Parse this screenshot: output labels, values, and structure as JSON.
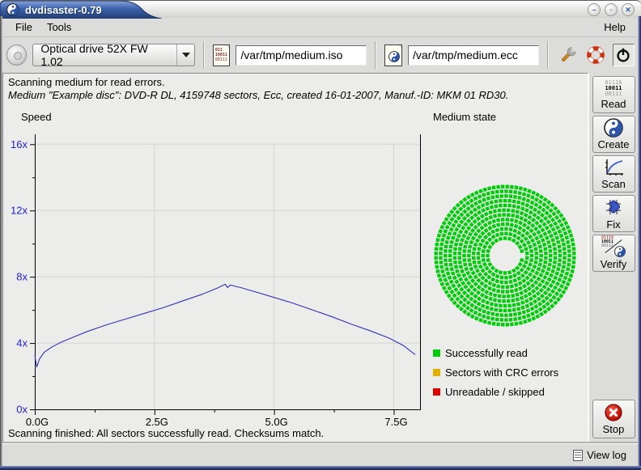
{
  "window": {
    "title": "dvdisaster-0.79"
  },
  "titlebar": {
    "buttons": [
      {
        "name": "minimize",
        "glyph": "–"
      },
      {
        "name": "maximize",
        "glyph": "▫"
      },
      {
        "name": "close",
        "glyph": "✕"
      }
    ]
  },
  "menubar": {
    "items": [
      "File",
      "Tools"
    ],
    "right_item": "Help"
  },
  "toolbar": {
    "drive_selector": "Optical drive 52X FW 1.02",
    "iso_path": "/var/tmp/medium.iso",
    "ecc_path": "/var/tmp/medium.ecc",
    "icons": [
      "optical-drive-icon",
      "iso-image-icon",
      "ecc-file-icon",
      "preferences-wrench-icon",
      "help-lifebuoy-icon",
      "quit-power-icon"
    ]
  },
  "status": {
    "line1": "Scanning medium for read errors.",
    "line2": "Medium \"Example disc\": DVD-R DL, 4159748 sectors, Ecc, created 16-01-2007, Manuf.-ID: MKM 01 RD30.",
    "footer": "Scanning finished: All sectors successfully read. Checksums match."
  },
  "sidebar": {
    "actions": [
      {
        "label": "Read"
      },
      {
        "label": "Create"
      },
      {
        "label": "Scan"
      },
      {
        "label": "Fix"
      },
      {
        "label": "Verify"
      }
    ],
    "stop_label": "Stop"
  },
  "statusbar": {
    "view_log": "View log"
  },
  "read_icon": {
    "row1": "01110",
    "row2": "10011",
    "row3": "00111"
  },
  "iso_icon": {
    "row1": "011",
    "row2": "10011",
    "row3": "00111"
  },
  "chart_data": [
    {
      "type": "line",
      "title": "Speed",
      "x_tick_labels": [
        "0.0G",
        "2.5G",
        "5.0G",
        "7.5G"
      ],
      "x_tick_values": [
        0,
        2.5,
        5,
        7.5
      ],
      "x_minor_ticks": [
        1.25,
        3.75,
        6.25
      ],
      "y_tick_labels": [
        "0x",
        "4x",
        "8x",
        "12x",
        "16x"
      ],
      "y_tick_values": [
        0,
        4,
        8,
        12,
        16
      ],
      "y_minor_ticks": [
        2,
        6,
        10,
        14
      ],
      "xlim": [
        0,
        8.05
      ],
      "ylim": [
        0,
        16.6
      ],
      "grid": true,
      "legend_position": "none",
      "axis_label_color": "#2222cc",
      "line_color": "#3232b4",
      "points": [
        [
          0.0,
          3.25
        ],
        [
          0.04,
          2.55
        ],
        [
          0.1,
          3.05
        ],
        [
          0.2,
          3.45
        ],
        [
          0.35,
          3.75
        ],
        [
          0.55,
          4.05
        ],
        [
          0.8,
          4.35
        ],
        [
          1.1,
          4.7
        ],
        [
          1.5,
          5.1
        ],
        [
          1.9,
          5.45
        ],
        [
          2.3,
          5.8
        ],
        [
          2.7,
          6.15
        ],
        [
          3.1,
          6.55
        ],
        [
          3.5,
          6.95
        ],
        [
          3.8,
          7.3
        ],
        [
          3.98,
          7.55
        ],
        [
          4.03,
          7.35
        ],
        [
          4.08,
          7.5
        ],
        [
          4.3,
          7.35
        ],
        [
          4.6,
          7.1
        ],
        [
          5.0,
          6.75
        ],
        [
          5.4,
          6.4
        ],
        [
          5.8,
          6.0
        ],
        [
          6.2,
          5.6
        ],
        [
          6.6,
          5.15
        ],
        [
          7.0,
          4.75
        ],
        [
          7.4,
          4.3
        ],
        [
          7.7,
          3.85
        ],
        [
          7.95,
          3.3
        ]
      ]
    },
    {
      "type": "disc-map",
      "title": "Medium state",
      "legend": [
        {
          "label": "Successfully read",
          "color": "#00cc0a"
        },
        {
          "label": "Sectors with CRC errors",
          "color": "#e2b000"
        },
        {
          "label": "Unreadable / skipped",
          "color": "#dd0000"
        }
      ],
      "disc": {
        "fill": "#00cc0a",
        "hole_radius": 17,
        "inner_radius": 21.5,
        "outer_radius": 85.5,
        "ring_step": 5.8,
        "cell_size": 4.4,
        "all_sectors_state": "Successfully read"
      }
    }
  ]
}
